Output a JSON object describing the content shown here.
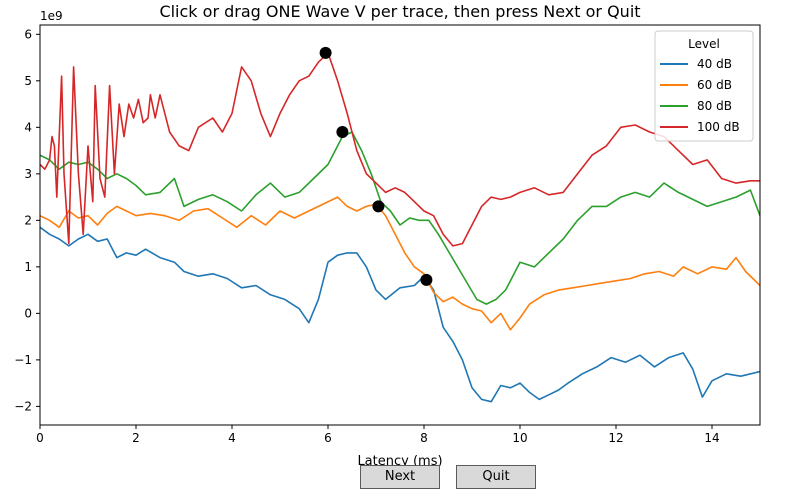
{
  "buttons": {
    "next_label": "Next",
    "quit_label": "Quit"
  },
  "chart_data": {
    "type": "line",
    "title": "Click or drag ONE Wave V per trace, then press Next or Quit",
    "xlabel": "Latency (ms)",
    "ylabel": "",
    "y_multiplier_label": "1e9",
    "xlim": [
      0,
      15
    ],
    "ylim": [
      -2.4,
      6.2
    ],
    "xticks": [
      0,
      2,
      4,
      6,
      8,
      10,
      12,
      14
    ],
    "yticks": [
      -2,
      -1,
      0,
      1,
      2,
      3,
      4,
      5,
      6
    ],
    "grid": false,
    "legend": {
      "title": "Level",
      "position": "top-right"
    },
    "series": [
      {
        "name": "40 dB",
        "color": "#1f77b4",
        "points": [
          [
            0,
            1.85
          ],
          [
            0.2,
            1.7
          ],
          [
            0.4,
            1.6
          ],
          [
            0.6,
            1.45
          ],
          [
            0.8,
            1.6
          ],
          [
            1.0,
            1.7
          ],
          [
            1.2,
            1.55
          ],
          [
            1.4,
            1.6
          ],
          [
            1.6,
            1.2
          ],
          [
            1.8,
            1.3
          ],
          [
            2.0,
            1.25
          ],
          [
            2.2,
            1.38
          ],
          [
            2.5,
            1.2
          ],
          [
            2.8,
            1.1
          ],
          [
            3.0,
            0.9
          ],
          [
            3.3,
            0.8
          ],
          [
            3.6,
            0.85
          ],
          [
            3.9,
            0.75
          ],
          [
            4.2,
            0.55
          ],
          [
            4.5,
            0.6
          ],
          [
            4.8,
            0.4
          ],
          [
            5.1,
            0.3
          ],
          [
            5.4,
            0.1
          ],
          [
            5.6,
            -0.2
          ],
          [
            5.8,
            0.3
          ],
          [
            6.0,
            1.1
          ],
          [
            6.2,
            1.25
          ],
          [
            6.4,
            1.3
          ],
          [
            6.6,
            1.3
          ],
          [
            6.8,
            1.0
          ],
          [
            7.0,
            0.5
          ],
          [
            7.2,
            0.3
          ],
          [
            7.5,
            0.55
          ],
          [
            7.8,
            0.6
          ],
          [
            8.0,
            0.8
          ],
          [
            8.2,
            0.5
          ],
          [
            8.4,
            -0.3
          ],
          [
            8.6,
            -0.6
          ],
          [
            8.8,
            -1.0
          ],
          [
            9.0,
            -1.6
          ],
          [
            9.2,
            -1.85
          ],
          [
            9.4,
            -1.9
          ],
          [
            9.6,
            -1.55
          ],
          [
            9.8,
            -1.6
          ],
          [
            10.0,
            -1.5
          ],
          [
            10.2,
            -1.7
          ],
          [
            10.4,
            -1.85
          ],
          [
            10.6,
            -1.75
          ],
          [
            10.8,
            -1.65
          ],
          [
            11.0,
            -1.5
          ],
          [
            11.3,
            -1.3
          ],
          [
            11.6,
            -1.15
          ],
          [
            11.9,
            -0.95
          ],
          [
            12.2,
            -1.05
          ],
          [
            12.5,
            -0.9
          ],
          [
            12.8,
            -1.15
          ],
          [
            13.1,
            -0.95
          ],
          [
            13.4,
            -0.85
          ],
          [
            13.6,
            -1.2
          ],
          [
            13.8,
            -1.8
          ],
          [
            14.0,
            -1.45
          ],
          [
            14.3,
            -1.3
          ],
          [
            14.6,
            -1.35
          ],
          [
            15.0,
            -1.25
          ]
        ]
      },
      {
        "name": "60 dB",
        "color": "#ff7f0e",
        "points": [
          [
            0,
            2.1
          ],
          [
            0.2,
            2.0
          ],
          [
            0.4,
            1.85
          ],
          [
            0.6,
            2.2
          ],
          [
            0.8,
            2.05
          ],
          [
            1.0,
            2.1
          ],
          [
            1.2,
            1.9
          ],
          [
            1.4,
            2.15
          ],
          [
            1.6,
            2.3
          ],
          [
            1.8,
            2.2
          ],
          [
            2.0,
            2.1
          ],
          [
            2.3,
            2.15
          ],
          [
            2.6,
            2.1
          ],
          [
            2.9,
            2.0
          ],
          [
            3.2,
            2.2
          ],
          [
            3.5,
            2.25
          ],
          [
            3.8,
            2.05
          ],
          [
            4.1,
            1.85
          ],
          [
            4.4,
            2.1
          ],
          [
            4.7,
            1.9
          ],
          [
            5.0,
            2.2
          ],
          [
            5.3,
            2.05
          ],
          [
            5.6,
            2.2
          ],
          [
            5.9,
            2.35
          ],
          [
            6.2,
            2.5
          ],
          [
            6.4,
            2.3
          ],
          [
            6.6,
            2.2
          ],
          [
            6.8,
            2.3
          ],
          [
            7.0,
            2.35
          ],
          [
            7.2,
            2.1
          ],
          [
            7.4,
            1.7
          ],
          [
            7.6,
            1.3
          ],
          [
            7.8,
            1.0
          ],
          [
            8.0,
            0.85
          ],
          [
            8.2,
            0.45
          ],
          [
            8.4,
            0.25
          ],
          [
            8.6,
            0.35
          ],
          [
            8.8,
            0.2
          ],
          [
            9.0,
            0.1
          ],
          [
            9.2,
            0.05
          ],
          [
            9.4,
            -0.2
          ],
          [
            9.6,
            0.0
          ],
          [
            9.8,
            -0.35
          ],
          [
            10.0,
            -0.1
          ],
          [
            10.2,
            0.2
          ],
          [
            10.5,
            0.4
          ],
          [
            10.8,
            0.5
          ],
          [
            11.1,
            0.55
          ],
          [
            11.4,
            0.6
          ],
          [
            11.7,
            0.65
          ],
          [
            12.0,
            0.7
          ],
          [
            12.3,
            0.75
          ],
          [
            12.6,
            0.85
          ],
          [
            12.9,
            0.9
          ],
          [
            13.2,
            0.8
          ],
          [
            13.4,
            1.0
          ],
          [
            13.7,
            0.85
          ],
          [
            14.0,
            1.0
          ],
          [
            14.3,
            0.95
          ],
          [
            14.5,
            1.2
          ],
          [
            14.7,
            0.9
          ],
          [
            15.0,
            0.6
          ]
        ]
      },
      {
        "name": "80 dB",
        "color": "#2ca02c",
        "points": [
          [
            0,
            3.4
          ],
          [
            0.2,
            3.3
          ],
          [
            0.4,
            3.1
          ],
          [
            0.6,
            3.25
          ],
          [
            0.8,
            3.2
          ],
          [
            1.0,
            3.25
          ],
          [
            1.2,
            3.1
          ],
          [
            1.4,
            2.9
          ],
          [
            1.6,
            3.0
          ],
          [
            1.8,
            2.9
          ],
          [
            2.0,
            2.75
          ],
          [
            2.2,
            2.55
          ],
          [
            2.5,
            2.6
          ],
          [
            2.8,
            2.9
          ],
          [
            3.0,
            2.3
          ],
          [
            3.3,
            2.45
          ],
          [
            3.6,
            2.55
          ],
          [
            3.9,
            2.4
          ],
          [
            4.2,
            2.2
          ],
          [
            4.5,
            2.55
          ],
          [
            4.8,
            2.8
          ],
          [
            5.1,
            2.5
          ],
          [
            5.4,
            2.6
          ],
          [
            5.7,
            2.9
          ],
          [
            6.0,
            3.2
          ],
          [
            6.3,
            3.8
          ],
          [
            6.5,
            3.9
          ],
          [
            6.7,
            3.5
          ],
          [
            6.9,
            3.0
          ],
          [
            7.1,
            2.4
          ],
          [
            7.3,
            2.2
          ],
          [
            7.5,
            1.9
          ],
          [
            7.7,
            2.05
          ],
          [
            7.9,
            2.0
          ],
          [
            8.1,
            2.0
          ],
          [
            8.3,
            1.7
          ],
          [
            8.5,
            1.35
          ],
          [
            8.7,
            1.0
          ],
          [
            8.9,
            0.65
          ],
          [
            9.1,
            0.3
          ],
          [
            9.3,
            0.2
          ],
          [
            9.5,
            0.3
          ],
          [
            9.7,
            0.5
          ],
          [
            10.0,
            1.1
          ],
          [
            10.3,
            1.0
          ],
          [
            10.6,
            1.3
          ],
          [
            10.9,
            1.6
          ],
          [
            11.2,
            2.0
          ],
          [
            11.5,
            2.3
          ],
          [
            11.8,
            2.3
          ],
          [
            12.1,
            2.5
          ],
          [
            12.4,
            2.6
          ],
          [
            12.7,
            2.5
          ],
          [
            13.0,
            2.8
          ],
          [
            13.3,
            2.6
          ],
          [
            13.6,
            2.45
          ],
          [
            13.9,
            2.3
          ],
          [
            14.2,
            2.4
          ],
          [
            14.5,
            2.5
          ],
          [
            14.8,
            2.65
          ],
          [
            15.0,
            2.1
          ]
        ]
      },
      {
        "name": "100 dB",
        "color": "#d62728",
        "points": [
          [
            0,
            3.2
          ],
          [
            0.1,
            3.1
          ],
          [
            0.2,
            3.3
          ],
          [
            0.25,
            3.8
          ],
          [
            0.3,
            3.6
          ],
          [
            0.35,
            2.5
          ],
          [
            0.45,
            5.1
          ],
          [
            0.5,
            3.0
          ],
          [
            0.6,
            1.5
          ],
          [
            0.7,
            5.3
          ],
          [
            0.8,
            3.0
          ],
          [
            0.9,
            1.7
          ],
          [
            1.0,
            3.6
          ],
          [
            1.1,
            2.4
          ],
          [
            1.15,
            4.9
          ],
          [
            1.25,
            2.9
          ],
          [
            1.35,
            2.5
          ],
          [
            1.45,
            4.9
          ],
          [
            1.55,
            3.0
          ],
          [
            1.65,
            4.5
          ],
          [
            1.75,
            3.8
          ],
          [
            1.85,
            4.5
          ],
          [
            1.95,
            4.2
          ],
          [
            2.05,
            4.6
          ],
          [
            2.15,
            4.1
          ],
          [
            2.25,
            4.2
          ],
          [
            2.3,
            4.7
          ],
          [
            2.4,
            4.2
          ],
          [
            2.5,
            4.7
          ],
          [
            2.7,
            3.9
          ],
          [
            2.9,
            3.6
          ],
          [
            3.1,
            3.5
          ],
          [
            3.3,
            4.0
          ],
          [
            3.6,
            4.2
          ],
          [
            3.8,
            3.9
          ],
          [
            4.0,
            4.3
          ],
          [
            4.2,
            5.3
          ],
          [
            4.4,
            5.0
          ],
          [
            4.6,
            4.3
          ],
          [
            4.8,
            3.8
          ],
          [
            5.0,
            4.3
          ],
          [
            5.2,
            4.7
          ],
          [
            5.4,
            5.0
          ],
          [
            5.6,
            5.1
          ],
          [
            5.8,
            5.4
          ],
          [
            6.0,
            5.6
          ],
          [
            6.2,
            5.0
          ],
          [
            6.4,
            4.3
          ],
          [
            6.6,
            3.5
          ],
          [
            6.8,
            3.0
          ],
          [
            7.0,
            2.8
          ],
          [
            7.2,
            2.6
          ],
          [
            7.4,
            2.7
          ],
          [
            7.6,
            2.6
          ],
          [
            7.8,
            2.4
          ],
          [
            8.0,
            2.2
          ],
          [
            8.2,
            2.1
          ],
          [
            8.4,
            1.7
          ],
          [
            8.6,
            1.45
          ],
          [
            8.8,
            1.5
          ],
          [
            9.0,
            1.9
          ],
          [
            9.2,
            2.3
          ],
          [
            9.4,
            2.5
          ],
          [
            9.6,
            2.45
          ],
          [
            9.8,
            2.5
          ],
          [
            10.0,
            2.6
          ],
          [
            10.3,
            2.7
          ],
          [
            10.6,
            2.55
          ],
          [
            10.9,
            2.6
          ],
          [
            11.2,
            3.0
          ],
          [
            11.5,
            3.4
          ],
          [
            11.8,
            3.6
          ],
          [
            12.1,
            4.0
          ],
          [
            12.4,
            4.05
          ],
          [
            12.7,
            3.9
          ],
          [
            13.0,
            3.8
          ],
          [
            13.3,
            3.5
          ],
          [
            13.6,
            3.2
          ],
          [
            13.9,
            3.3
          ],
          [
            14.2,
            2.9
          ],
          [
            14.5,
            2.8
          ],
          [
            14.8,
            2.85
          ],
          [
            15.0,
            2.85
          ]
        ]
      }
    ],
    "markers": [
      {
        "series": "100 dB",
        "x": 5.95,
        "y": 5.6
      },
      {
        "series": "80 dB",
        "x": 6.3,
        "y": 3.9
      },
      {
        "series": "60 dB",
        "x": 7.05,
        "y": 2.3
      },
      {
        "series": "40 dB",
        "x": 8.05,
        "y": 0.72
      }
    ]
  }
}
